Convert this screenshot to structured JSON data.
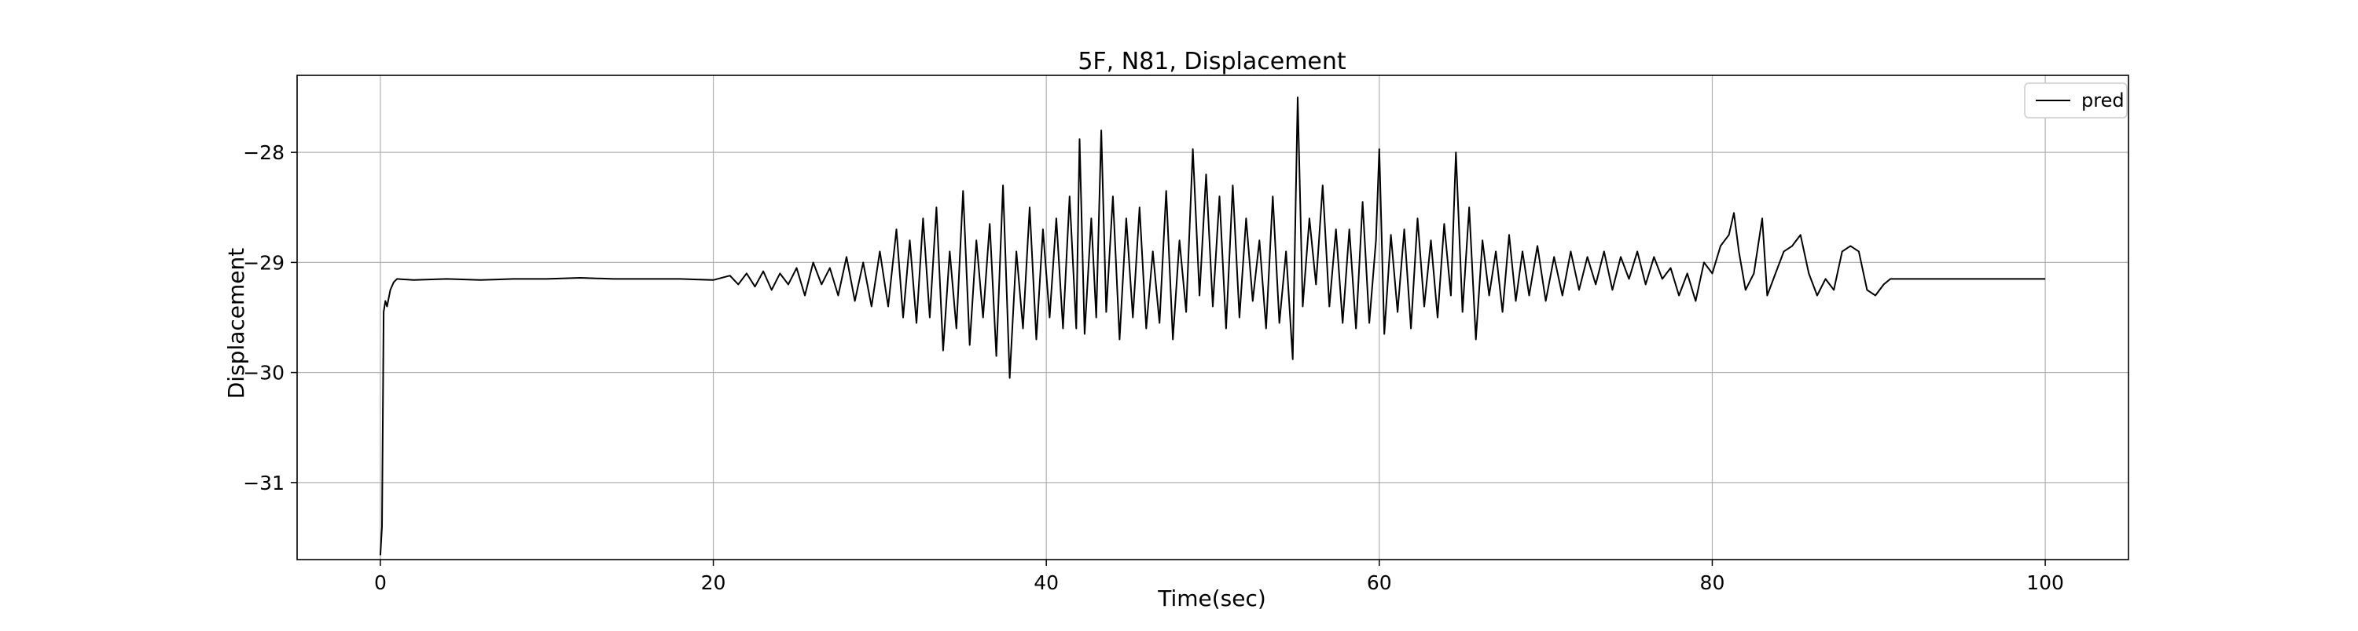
{
  "chart_data": {
    "type": "line",
    "title": "5F, N81, Displacement",
    "xlabel": "Time(sec)",
    "ylabel": "Displacement",
    "xlim": [
      -5,
      105
    ],
    "ylim": [
      -31.7,
      -27.3
    ],
    "x_ticks": [
      0,
      20,
      40,
      60,
      80,
      100
    ],
    "y_ticks": [
      -31,
      -30,
      -29,
      -28
    ],
    "grid": true,
    "legend_position": "top-right",
    "series": [
      {
        "name": "pred",
        "color": "#000000",
        "points": [
          [
            0.0,
            -31.66
          ],
          [
            0.1,
            -31.4
          ],
          [
            0.2,
            -29.45
          ],
          [
            0.3,
            -29.35
          ],
          [
            0.4,
            -29.4
          ],
          [
            0.6,
            -29.25
          ],
          [
            0.8,
            -29.18
          ],
          [
            1.0,
            -29.15
          ],
          [
            2.0,
            -29.16
          ],
          [
            4.0,
            -29.15
          ],
          [
            6.0,
            -29.16
          ],
          [
            8.0,
            -29.15
          ],
          [
            10.0,
            -29.15
          ],
          [
            12.0,
            -29.14
          ],
          [
            14.0,
            -29.15
          ],
          [
            16.0,
            -29.15
          ],
          [
            18.0,
            -29.15
          ],
          [
            20.0,
            -29.16
          ],
          [
            21.0,
            -29.12
          ],
          [
            21.5,
            -29.2
          ],
          [
            22.0,
            -29.1
          ],
          [
            22.5,
            -29.22
          ],
          [
            23.0,
            -29.08
          ],
          [
            23.5,
            -29.25
          ],
          [
            24.0,
            -29.1
          ],
          [
            24.5,
            -29.2
          ],
          [
            25.0,
            -29.05
          ],
          [
            25.5,
            -29.3
          ],
          [
            26.0,
            -29.0
          ],
          [
            26.5,
            -29.2
          ],
          [
            27.0,
            -29.05
          ],
          [
            27.5,
            -29.3
          ],
          [
            28.0,
            -28.95
          ],
          [
            28.5,
            -29.35
          ],
          [
            29.0,
            -29.0
          ],
          [
            29.5,
            -29.4
          ],
          [
            30.0,
            -28.9
          ],
          [
            30.5,
            -29.4
          ],
          [
            31.0,
            -28.7
          ],
          [
            31.4,
            -29.5
          ],
          [
            31.8,
            -28.8
          ],
          [
            32.2,
            -29.55
          ],
          [
            32.6,
            -28.6
          ],
          [
            33.0,
            -29.5
          ],
          [
            33.4,
            -28.5
          ],
          [
            33.8,
            -29.8
          ],
          [
            34.2,
            -28.9
          ],
          [
            34.6,
            -29.6
          ],
          [
            35.0,
            -28.35
          ],
          [
            35.4,
            -29.75
          ],
          [
            35.8,
            -28.8
          ],
          [
            36.2,
            -29.5
          ],
          [
            36.6,
            -28.65
          ],
          [
            37.0,
            -29.85
          ],
          [
            37.4,
            -28.3
          ],
          [
            37.8,
            -30.05
          ],
          [
            38.2,
            -28.9
          ],
          [
            38.6,
            -29.6
          ],
          [
            39.0,
            -28.5
          ],
          [
            39.4,
            -29.7
          ],
          [
            39.8,
            -28.7
          ],
          [
            40.2,
            -29.5
          ],
          [
            40.6,
            -28.6
          ],
          [
            41.0,
            -29.6
          ],
          [
            41.4,
            -28.4
          ],
          [
            41.8,
            -29.6
          ],
          [
            42.0,
            -27.88
          ],
          [
            42.3,
            -29.65
          ],
          [
            42.7,
            -28.6
          ],
          [
            43.0,
            -29.5
          ],
          [
            43.3,
            -27.8
          ],
          [
            43.6,
            -29.45
          ],
          [
            44.0,
            -28.4
          ],
          [
            44.4,
            -29.7
          ],
          [
            44.8,
            -28.6
          ],
          [
            45.2,
            -29.5
          ],
          [
            45.6,
            -28.5
          ],
          [
            46.0,
            -29.6
          ],
          [
            46.4,
            -28.9
          ],
          [
            46.8,
            -29.55
          ],
          [
            47.2,
            -28.35
          ],
          [
            47.6,
            -29.7
          ],
          [
            48.0,
            -28.8
          ],
          [
            48.4,
            -29.45
          ],
          [
            48.8,
            -27.97
          ],
          [
            49.2,
            -29.3
          ],
          [
            49.6,
            -28.2
          ],
          [
            50.0,
            -29.4
          ],
          [
            50.4,
            -28.4
          ],
          [
            50.8,
            -29.6
          ],
          [
            51.2,
            -28.3
          ],
          [
            51.6,
            -29.5
          ],
          [
            52.0,
            -28.6
          ],
          [
            52.4,
            -29.35
          ],
          [
            52.8,
            -28.8
          ],
          [
            53.2,
            -29.6
          ],
          [
            53.6,
            -28.4
          ],
          [
            54.0,
            -29.55
          ],
          [
            54.4,
            -28.9
          ],
          [
            54.8,
            -29.88
          ],
          [
            55.1,
            -27.5
          ],
          [
            55.4,
            -29.4
          ],
          [
            55.8,
            -28.6
          ],
          [
            56.2,
            -29.2
          ],
          [
            56.6,
            -28.3
          ],
          [
            57.0,
            -29.4
          ],
          [
            57.4,
            -28.7
          ],
          [
            57.8,
            -29.55
          ],
          [
            58.2,
            -28.7
          ],
          [
            58.6,
            -29.6
          ],
          [
            59.0,
            -28.45
          ],
          [
            59.4,
            -29.55
          ],
          [
            59.8,
            -28.8
          ],
          [
            60.0,
            -27.97
          ],
          [
            60.3,
            -29.65
          ],
          [
            60.7,
            -28.75
          ],
          [
            61.1,
            -29.45
          ],
          [
            61.5,
            -28.7
          ],
          [
            61.9,
            -29.6
          ],
          [
            62.3,
            -28.6
          ],
          [
            62.7,
            -29.4
          ],
          [
            63.1,
            -28.8
          ],
          [
            63.5,
            -29.5
          ],
          [
            63.9,
            -28.65
          ],
          [
            64.3,
            -29.3
          ],
          [
            64.6,
            -28.0
          ],
          [
            65.0,
            -29.45
          ],
          [
            65.4,
            -28.5
          ],
          [
            65.8,
            -29.7
          ],
          [
            66.2,
            -28.8
          ],
          [
            66.6,
            -29.3
          ],
          [
            67.0,
            -28.9
          ],
          [
            67.4,
            -29.45
          ],
          [
            67.8,
            -28.75
          ],
          [
            68.2,
            -29.35
          ],
          [
            68.6,
            -28.9
          ],
          [
            69.0,
            -29.3
          ],
          [
            69.5,
            -28.85
          ],
          [
            70.0,
            -29.35
          ],
          [
            70.5,
            -28.95
          ],
          [
            71.0,
            -29.3
          ],
          [
            71.5,
            -28.9
          ],
          [
            72.0,
            -29.25
          ],
          [
            72.5,
            -28.95
          ],
          [
            73.0,
            -29.2
          ],
          [
            73.5,
            -28.9
          ],
          [
            74.0,
            -29.25
          ],
          [
            74.5,
            -28.95
          ],
          [
            75.0,
            -29.15
          ],
          [
            75.5,
            -28.9
          ],
          [
            76.0,
            -29.2
          ],
          [
            76.5,
            -28.95
          ],
          [
            77.0,
            -29.15
          ],
          [
            77.5,
            -29.05
          ],
          [
            78.0,
            -29.3
          ],
          [
            78.5,
            -29.1
          ],
          [
            79.0,
            -29.35
          ],
          [
            79.5,
            -29.0
          ],
          [
            80.0,
            -29.1
          ],
          [
            80.5,
            -28.85
          ],
          [
            81.0,
            -28.75
          ],
          [
            81.3,
            -28.55
          ],
          [
            81.6,
            -28.9
          ],
          [
            82.0,
            -29.25
          ],
          [
            82.5,
            -29.1
          ],
          [
            83.0,
            -28.6
          ],
          [
            83.3,
            -29.3
          ],
          [
            83.8,
            -29.1
          ],
          [
            84.3,
            -28.9
          ],
          [
            84.8,
            -28.85
          ],
          [
            85.3,
            -28.75
          ],
          [
            85.8,
            -29.1
          ],
          [
            86.3,
            -29.3
          ],
          [
            86.8,
            -29.15
          ],
          [
            87.3,
            -29.25
          ],
          [
            87.8,
            -28.9
          ],
          [
            88.3,
            -28.85
          ],
          [
            88.8,
            -28.9
          ],
          [
            89.3,
            -29.25
          ],
          [
            89.8,
            -29.3
          ],
          [
            90.3,
            -29.2
          ],
          [
            90.7,
            -29.15
          ],
          [
            92.0,
            -29.15
          ],
          [
            95.0,
            -29.15
          ],
          [
            100.0,
            -29.15
          ]
        ]
      }
    ]
  }
}
